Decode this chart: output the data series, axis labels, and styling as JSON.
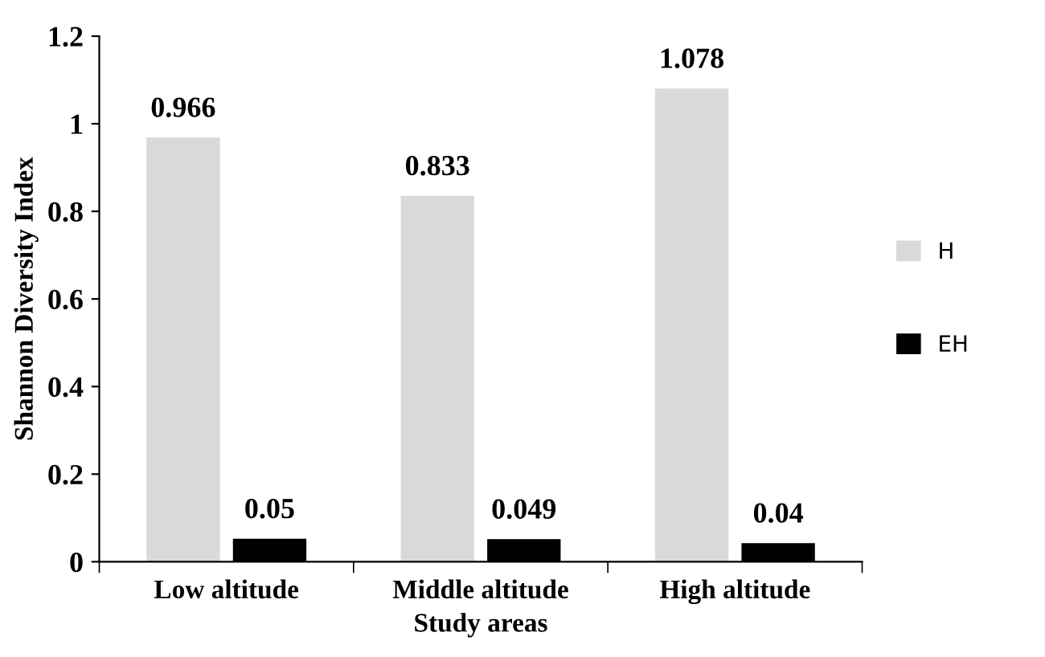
{
  "chart_data": {
    "type": "bar",
    "xlabel": "Study areas",
    "ylabel": "Shannon Diversity Index",
    "categories": [
      "Low altitude",
      "Middle altitude",
      "High altitude"
    ],
    "series": [
      {
        "name": "H",
        "color": "#d9d9d9",
        "values": [
          0.966,
          0.833,
          1.078
        ]
      },
      {
        "name": "EH",
        "color": "#000000",
        "values": [
          0.05,
          0.049,
          0.04
        ]
      }
    ],
    "ylim": [
      0,
      1.2
    ],
    "yticks": [
      0,
      0.2,
      0.4,
      0.6,
      0.8,
      1,
      1.2
    ],
    "grid": false,
    "legend": "right",
    "data_labels": true
  }
}
